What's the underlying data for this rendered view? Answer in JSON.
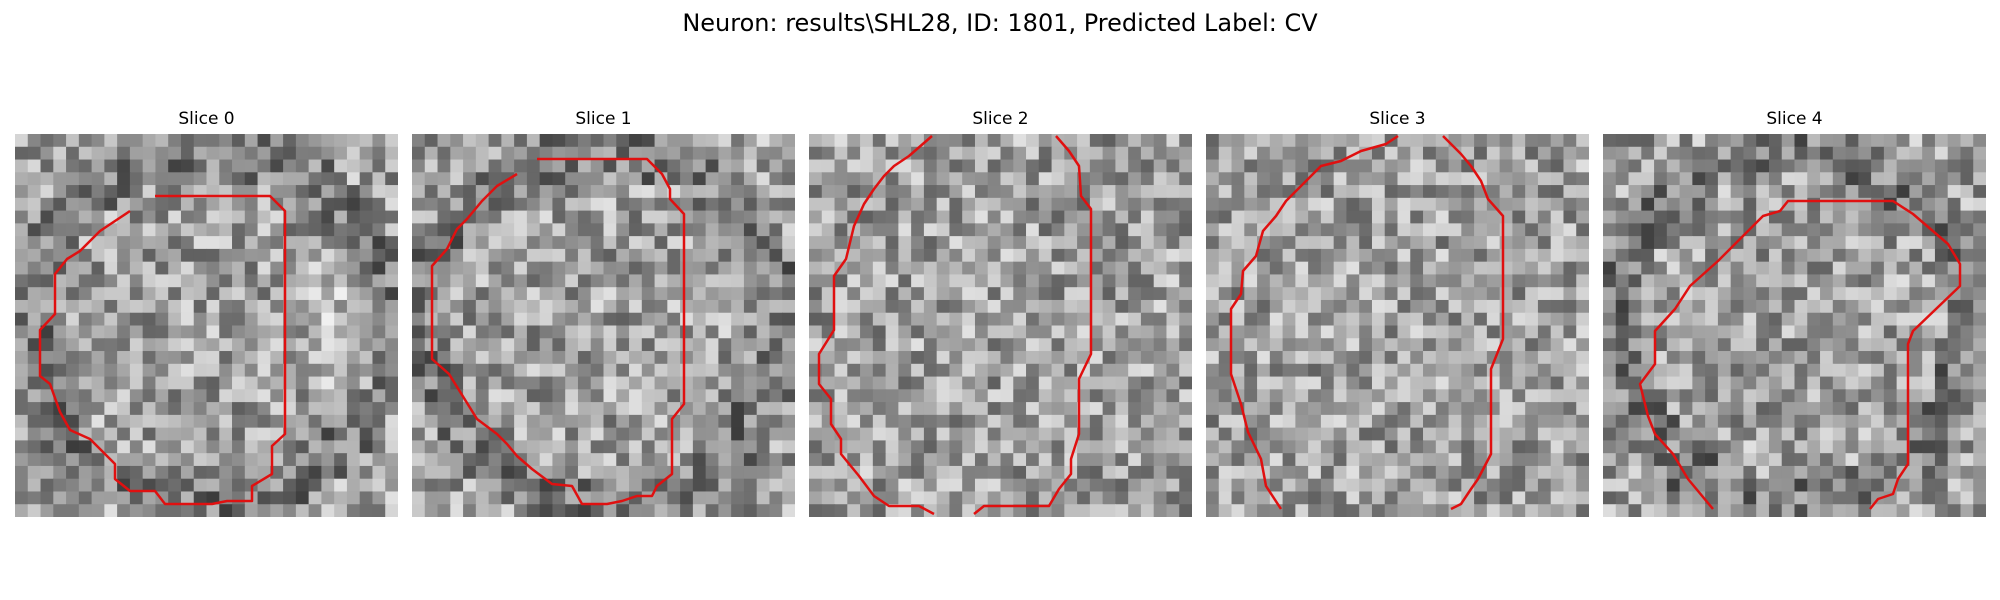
{
  "figure": {
    "title": "Neuron: results\\SHL28, ID: 1801, Predicted Label: CV",
    "panels": [
      {
        "label": "Slice 0",
        "seed": 11,
        "dark_edge": 1,
        "bright_right": 1
      },
      {
        "label": "Slice 1",
        "seed": 27,
        "dark_edge": 1,
        "bright_right": 0
      },
      {
        "label": "Slice 2",
        "seed": 43,
        "dark_edge": 0,
        "bright_right": 0
      },
      {
        "label": "Slice 3",
        "seed": 59,
        "dark_edge": 0,
        "bright_right": 0
      },
      {
        "label": "Slice 4",
        "seed": 71,
        "dark_edge": 1,
        "bright_right": 0
      }
    ],
    "contour_color": "#e01010"
  }
}
